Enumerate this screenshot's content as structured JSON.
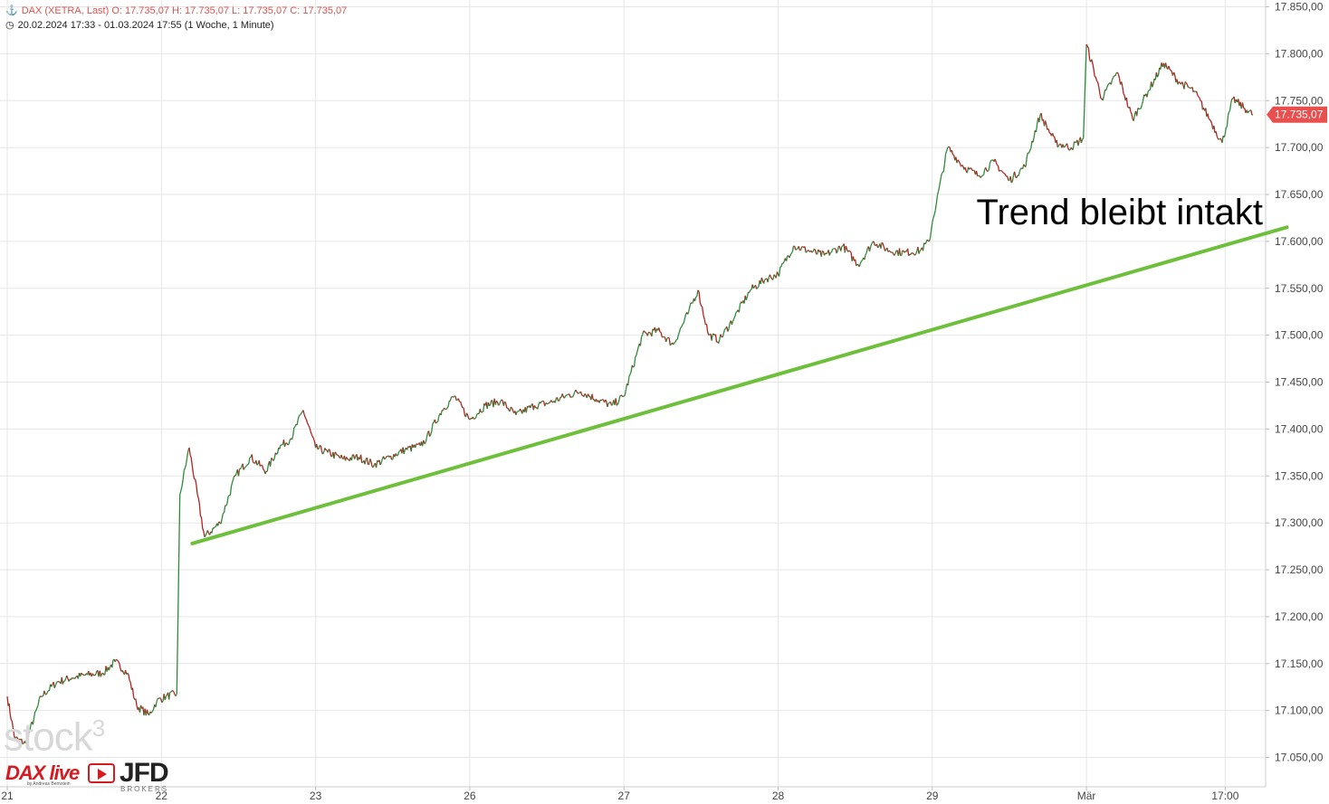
{
  "header": {
    "line1": "DAX (XETRA, Last)  O: 17.735,07  H: 17.735,07  L: 17.735,07  C: 17.735,07",
    "line2": "20.02.2024 17:33 - 01.03.2024 17:55  (1 Woche, 1 Minute)"
  },
  "watermark": {
    "brand": "stock",
    "sup": "3"
  },
  "logos": {
    "dax_live": "DAX live",
    "dax_live_sub": "by Andreas Bernstein",
    "jfd": "JFD",
    "brokers": "BROKERS"
  },
  "annotation": {
    "text": "Trend bleibt intakt"
  },
  "price_tag": {
    "label": "17.735,07",
    "value": 17735.07,
    "color": "#e8504f"
  },
  "colors": {
    "up": "#2e8b3a",
    "down": "#b22222",
    "trendline": "#6ebf3b",
    "grid": "#e6e6e6"
  },
  "chart_data": {
    "type": "line",
    "y_axis": {
      "ticks": [
        17050,
        17100,
        17150,
        17200,
        17250,
        17300,
        17350,
        17400,
        17450,
        17500,
        17550,
        17600,
        17650,
        17700,
        17750,
        17800,
        17850
      ],
      "tick_labels": [
        "17.050,00",
        "17.100,00",
        "17.150,00",
        "17.200,00",
        "17.250,00",
        "17.300,00",
        "17.350,00",
        "17.400,00",
        "17.450,00",
        "17.500,00",
        "17.550,00",
        "17.600,00",
        "17.650,00",
        "17.700,00",
        "17.750,00",
        "17.800,00",
        "17.850,00"
      ],
      "ylim": [
        17000,
        17860
      ]
    },
    "x_axis": {
      "labels": [
        "21",
        "22",
        "23",
        "26",
        "27",
        "28",
        "29",
        "Mär",
        "17:00"
      ]
    },
    "series": [
      {
        "points": [
          [
            0.0,
            17115
          ],
          [
            0.05,
            17070
          ],
          [
            0.12,
            17065
          ],
          [
            0.22,
            17115
          ],
          [
            0.32,
            17130
          ],
          [
            0.42,
            17135
          ],
          [
            0.52,
            17138
          ],
          [
            0.62,
            17140
          ],
          [
            0.7,
            17152
          ],
          [
            0.78,
            17140
          ],
          [
            0.84,
            17105
          ],
          [
            0.92,
            17095
          ],
          [
            0.97,
            17110
          ],
          [
            1.03,
            17115
          ],
          [
            1.1,
            17118
          ],
          [
            1.12,
            17330
          ],
          [
            1.18,
            17380
          ],
          [
            1.28,
            17285
          ],
          [
            1.38,
            17300
          ],
          [
            1.48,
            17350
          ],
          [
            1.58,
            17370
          ],
          [
            1.68,
            17355
          ],
          [
            1.76,
            17380
          ],
          [
            1.84,
            17390
          ],
          [
            1.92,
            17420
          ],
          [
            2.0,
            17380
          ],
          [
            2.08,
            17375
          ],
          [
            2.18,
            17368
          ],
          [
            2.28,
            17370
          ],
          [
            2.38,
            17362
          ],
          [
            2.48,
            17370
          ],
          [
            2.58,
            17378
          ],
          [
            2.68,
            17382
          ],
          [
            2.72,
            17390
          ],
          [
            2.82,
            17420
          ],
          [
            2.9,
            17435
          ],
          [
            3.0,
            17410
          ],
          [
            3.1,
            17425
          ],
          [
            3.2,
            17430
          ],
          [
            3.3,
            17415
          ],
          [
            3.42,
            17425
          ],
          [
            3.52,
            17428
          ],
          [
            3.62,
            17435
          ],
          [
            3.72,
            17440
          ],
          [
            3.82,
            17432
          ],
          [
            3.92,
            17425
          ],
          [
            4.0,
            17435
          ],
          [
            4.12,
            17500
          ],
          [
            4.22,
            17505
          ],
          [
            4.32,
            17490
          ],
          [
            4.42,
            17525
          ],
          [
            4.48,
            17548
          ],
          [
            4.55,
            17500
          ],
          [
            4.62,
            17495
          ],
          [
            4.72,
            17520
          ],
          [
            4.82,
            17548
          ],
          [
            4.92,
            17560
          ],
          [
            5.0,
            17565
          ],
          [
            5.1,
            17595
          ],
          [
            5.2,
            17590
          ],
          [
            5.3,
            17585
          ],
          [
            5.42,
            17595
          ],
          [
            5.52,
            17575
          ],
          [
            5.62,
            17600
          ],
          [
            5.72,
            17590
          ],
          [
            5.82,
            17588
          ],
          [
            5.92,
            17590
          ],
          [
            5.98,
            17600
          ],
          [
            6.0,
            17620
          ],
          [
            6.1,
            17700
          ],
          [
            6.2,
            17680
          ],
          [
            6.3,
            17670
          ],
          [
            6.4,
            17685
          ],
          [
            6.5,
            17665
          ],
          [
            6.6,
            17680
          ],
          [
            6.7,
            17735
          ],
          [
            6.8,
            17705
          ],
          [
            6.9,
            17700
          ],
          [
            6.98,
            17710
          ],
          [
            7.0,
            17810
          ],
          [
            7.1,
            17752
          ],
          [
            7.2,
            17780
          ],
          [
            7.3,
            17730
          ],
          [
            7.4,
            17760
          ],
          [
            7.5,
            17790
          ],
          [
            7.6,
            17770
          ],
          [
            7.7,
            17760
          ],
          [
            7.8,
            17730
          ],
          [
            7.88,
            17705
          ],
          [
            7.95,
            17752
          ],
          [
            8.04,
            17740
          ],
          [
            8.08,
            17735
          ]
        ]
      }
    ],
    "trendline": {
      "start": [
        1.2,
        17278
      ],
      "end": [
        8.3,
        17615
      ]
    }
  }
}
